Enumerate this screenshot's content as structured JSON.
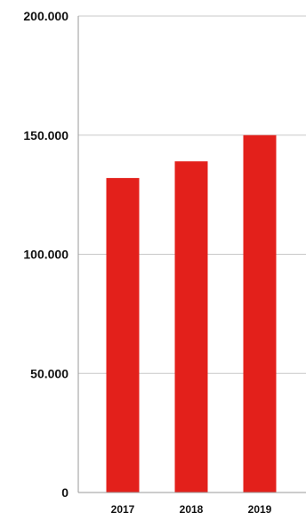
{
  "chart_data": {
    "type": "bar",
    "categories": [
      "2017",
      "2018",
      "2019"
    ],
    "values": [
      132000,
      139000,
      150000
    ],
    "title": "",
    "xlabel": "",
    "ylabel": "",
    "ylim": [
      0,
      200000
    ],
    "yticks": [
      0,
      50000,
      100000,
      150000,
      200000
    ],
    "ytick_labels": [
      "0",
      "50.000",
      "100.000",
      "150.000",
      "200.000"
    ],
    "grid": true,
    "bar_color": "#e3201b",
    "grid_color": "#c8c8c8",
    "axis_color": "#9a9a9a"
  }
}
